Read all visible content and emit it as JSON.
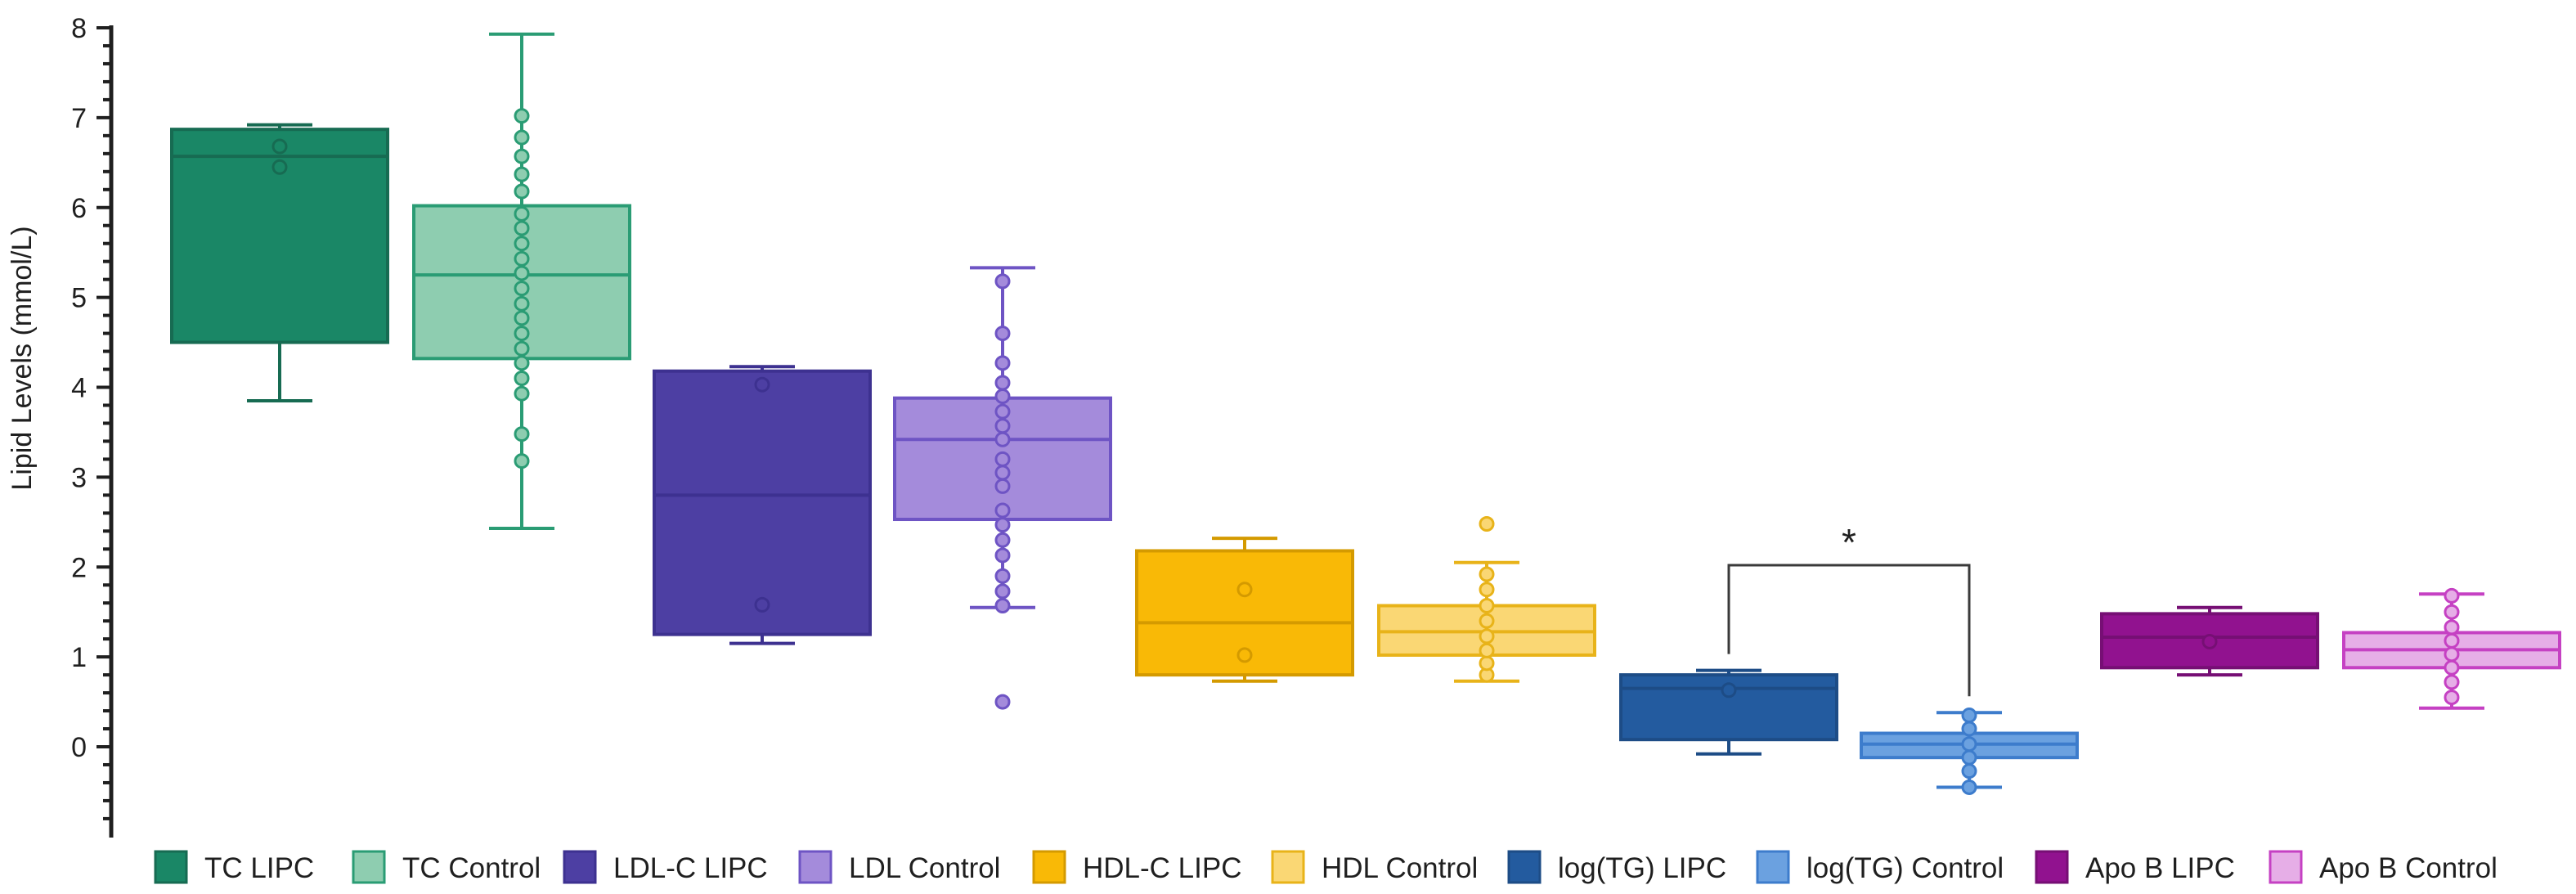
{
  "chart_data": {
    "type": "box",
    "ylabel": "Lipid Levels (mmol/L)",
    "ylim": [
      -0.5,
      8
    ],
    "yticks": [
      0,
      1,
      2,
      3,
      4,
      5,
      6,
      7,
      8
    ],
    "ytick_labels": [
      "0",
      "1",
      "2",
      "3",
      "4",
      "5",
      "6",
      "7",
      "8"
    ],
    "legend_position": "bottom",
    "series": [
      {
        "name": "TC LIPC",
        "fill": "#1a8766",
        "stroke": "#176b52",
        "whisker_low": 3.85,
        "q1": 4.5,
        "median": 6.57,
        "q3": 6.87,
        "whisker_high": 6.92,
        "points": [
          6.45,
          6.68
        ]
      },
      {
        "name": "TC Control",
        "fill": "#8ecdb0",
        "stroke": "#2a9c74",
        "whisker_low": 2.43,
        "q1": 4.32,
        "median": 5.25,
        "q3": 6.02,
        "whisker_high": 7.93,
        "points": [
          3.18,
          3.48,
          3.93,
          4.1,
          4.27,
          4.43,
          4.6,
          4.77,
          4.93,
          5.1,
          5.27,
          5.43,
          5.6,
          5.77,
          5.93,
          6.18,
          6.37,
          6.57,
          6.78,
          7.02
        ]
      },
      {
        "name": "LDL-C LIPC",
        "fill": "#4d3fa3",
        "stroke": "#3d3190",
        "whisker_low": 1.15,
        "q1": 1.25,
        "median": 2.8,
        "q3": 4.18,
        "whisker_high": 4.23,
        "points": [
          1.58,
          4.03
        ]
      },
      {
        "name": "LDL Control",
        "fill": "#a48bdb",
        "stroke": "#6e54c4",
        "whisker_low": 1.55,
        "q1": 2.53,
        "median": 3.42,
        "q3": 3.88,
        "whisker_high": 5.33,
        "points": [
          0.5,
          1.57,
          1.73,
          1.9,
          2.13,
          2.3,
          2.47,
          2.63,
          2.9,
          3.05,
          3.2,
          3.42,
          3.57,
          3.73,
          3.9,
          4.05,
          4.27,
          4.6,
          5.18
        ]
      },
      {
        "name": "HDL-C LIPC",
        "fill": "#f9b906",
        "stroke": "#d49a00",
        "whisker_low": 0.73,
        "q1": 0.8,
        "median": 1.38,
        "q3": 2.18,
        "whisker_high": 2.32,
        "points": [
          1.02,
          1.75
        ]
      },
      {
        "name": "HDL Control",
        "fill": "#fad774",
        "stroke": "#e8b319",
        "whisker_low": 0.73,
        "q1": 1.02,
        "median": 1.28,
        "q3": 1.57,
        "whisker_high": 2.05,
        "points": [
          0.8,
          0.93,
          1.07,
          1.23,
          1.4,
          1.57,
          1.75,
          1.92,
          2.48
        ]
      },
      {
        "name": "log(TG) LIPC",
        "fill": "#235b9f",
        "stroke": "#1d4c86",
        "whisker_low": -0.08,
        "q1": 0.08,
        "median": 0.65,
        "q3": 0.8,
        "whisker_high": 0.85,
        "points": [
          0.63
        ]
      },
      {
        "name": "log(TG) Control",
        "fill": "#6ba1e0",
        "stroke": "#3d7ccc",
        "whisker_low": -0.45,
        "q1": -0.12,
        "median": 0.03,
        "q3": 0.15,
        "whisker_high": 0.38,
        "points": [
          -0.45,
          -0.27,
          -0.12,
          0.03,
          0.2,
          0.35
        ]
      },
      {
        "name": "Apo B LIPC",
        "fill": "#91128f",
        "stroke": "#760f74",
        "whisker_low": 0.8,
        "q1": 0.88,
        "median": 1.22,
        "q3": 1.48,
        "whisker_high": 1.55,
        "points": [
          1.17
        ]
      },
      {
        "name": "Apo B Control",
        "fill": "#e6aee7",
        "stroke": "#c541c3",
        "whisker_low": 0.43,
        "q1": 0.88,
        "median": 1.08,
        "q3": 1.27,
        "whisker_high": 1.7,
        "points": [
          0.55,
          0.72,
          0.88,
          1.03,
          1.18,
          1.33,
          1.5,
          1.68
        ]
      }
    ],
    "annotations": [
      {
        "type": "significance_bracket",
        "label": "*",
        "between": [
          "log(TG) LIPC",
          "log(TG) Control"
        ],
        "y": 2.02
      }
    ]
  }
}
